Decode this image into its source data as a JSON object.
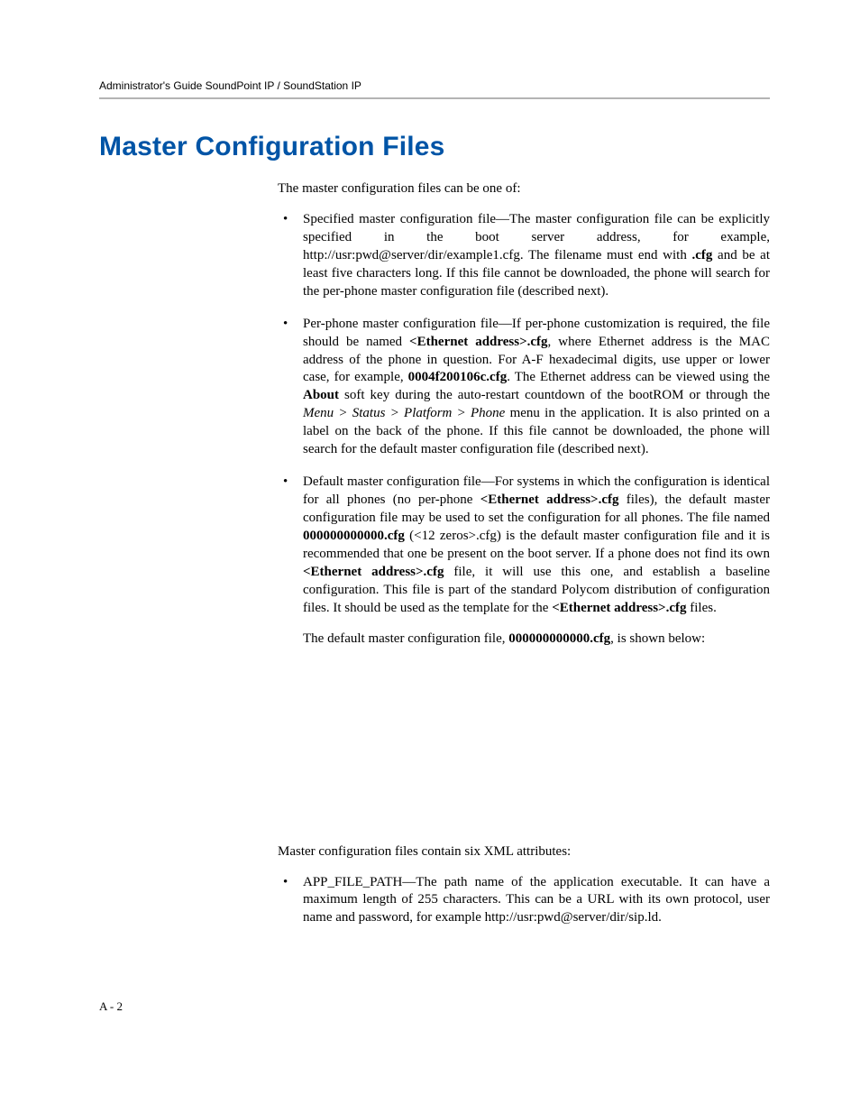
{
  "header": {
    "running": "Administrator's Guide SoundPoint IP / SoundStation IP"
  },
  "title": "Master Configuration Files",
  "intro": "The master configuration files can be one of:",
  "bullets1": [
    {
      "pre": "Specified master configuration file—The master configuration file can be explicitly specified in the boot server address, for example, http://usr:pwd@server/dir/example1.cfg. The filename must end with ",
      "b1": ".cfg",
      "post": " and be at least five characters long. If this file cannot be downloaded, the phone will search for the per-phone master configuration file (described next)."
    }
  ],
  "bullet2": {
    "t1": "Per-phone master configuration file—If per-phone customization is required, the file should be named ",
    "b1": "<Ethernet address>.cfg",
    "t2": ", where Ethernet address is the MAC address of the phone in question. For A-F hexadecimal digits, use upper or lower case, for example, ",
    "b2": "0004f200106c.cfg",
    "t3": ". The Ethernet address can be viewed using the ",
    "b3": "About",
    "t4": " soft key during the auto-restart countdown of the bootROM or through the ",
    "i1": "Menu > Status > Platform > Phone",
    "t5": " menu in the application. It is also printed on a label on the back of the phone. If this file cannot be downloaded, the phone will search for the default master configuration file (described next)."
  },
  "bullet3": {
    "t1": "Default master configuration file—For systems in which the configuration is identical for all phones (no per-phone ",
    "b1": "<Ethernet address>.cfg",
    "t2": " files), the default master configuration file may be used to set the configuration for all phones. The file named ",
    "b2": "000000000000.cfg",
    "t3": " (<12 zeros>.cfg) is the default master configuration file and it is recommended that one be present on the boot server. If a phone does not find its own ",
    "b3": "<Ethernet address>.cfg",
    "t4": " file, it will use this one, and establish a baseline configuration. This file is part of the standard Polycom distribution of configuration files. It should be used as the template for the ",
    "b4": "<Ethernet address>.cfg",
    "t5": " files."
  },
  "follow": {
    "t1": "The default master configuration file, ",
    "b1": "000000000000.cfg",
    "t2": ", is shown below:"
  },
  "xml_intro": "Master configuration files contain six XML attributes:",
  "bullet4": {
    "t1": "APP_FILE_PATH—The path name of the application executable. It can have a maximum length of 255 characters. This can be a URL with its own protocol, user name and password, for example http://usr:pwd@server/dir/sip.ld."
  },
  "page_num": "A - 2",
  "colors": {
    "title": "#0054a6",
    "rule": "#b4b4b4",
    "text": "#000000",
    "bg": "#ffffff"
  },
  "typography": {
    "body_family": "Book Antiqua / Palatino serif",
    "heading_family": "Arial / Futura sans-serif",
    "body_size_pt": 11,
    "title_size_pt": 22
  }
}
